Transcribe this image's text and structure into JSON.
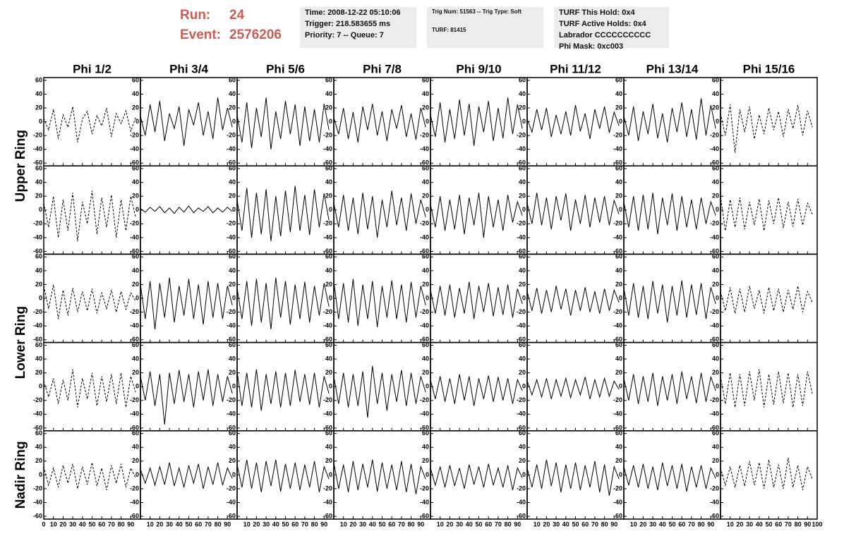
{
  "header": {
    "run_label": "Run:",
    "run": "24",
    "event_label": "Event:",
    "event": "2576206",
    "info_boxes": [
      [
        "Time: 2008-12-22 05:10:06",
        "Trigger: 218.583655 ms",
        "Priority: 7 -- Queue: 7"
      ],
      [
        "Trig Num: 51563 -- Trig Type: Soft",
        "TURF: 81415"
      ],
      [
        "TURF This Hold: 0x4",
        "TURF Active Holds: 0x4",
        "Labrador CCCCCCCCCC",
        "Phi Mask: 0xc003"
      ]
    ]
  },
  "columns": [
    "Phi 1/2",
    "Phi 3/4",
    "Phi 5/6",
    "Phi 7/8",
    "Phi 9/10",
    "Phi 11/12",
    "Phi 13/14",
    "Phi 15/16"
  ],
  "rings": [
    "Upper Ring",
    "Lower Ring",
    "Nadir Ring"
  ],
  "dashed": [
    true,
    false,
    false,
    false,
    false,
    false,
    false,
    true
  ],
  "xlim": [
    0,
    100
  ],
  "xticks": [
    0,
    10,
    20,
    30,
    40,
    50,
    60,
    70,
    80,
    90,
    100
  ],
  "ylim": [
    -64,
    64
  ],
  "yticks": [
    -60,
    -40,
    -20,
    0,
    20,
    40,
    60
  ],
  "x": [
    0,
    5,
    10,
    15,
    20,
    25,
    30,
    35,
    40,
    45,
    50,
    55,
    60,
    65,
    70,
    75,
    80,
    85,
    90,
    95
  ],
  "waves": [
    [
      [
        5,
        -12,
        18,
        -25,
        10,
        -8,
        22,
        -30,
        4,
        15,
        -18,
        9,
        -6,
        20,
        -22,
        12,
        -3,
        16,
        -14,
        6
      ],
      [
        8,
        -20,
        25,
        -15,
        30,
        -28,
        12,
        -10,
        22,
        -35,
        18,
        -5,
        28,
        -20,
        15,
        -25,
        35,
        -12,
        20,
        -8
      ],
      [
        10,
        -30,
        28,
        -38,
        20,
        -22,
        35,
        -40,
        15,
        -25,
        30,
        -18,
        25,
        -35,
        22,
        -28,
        18,
        -30,
        26,
        -12
      ],
      [
        6,
        -18,
        20,
        -25,
        14,
        -30,
        22,
        -12,
        26,
        -20,
        15,
        -28,
        18,
        -10,
        24,
        -22,
        12,
        -26,
        20,
        -8
      ],
      [
        10,
        -22,
        28,
        -30,
        18,
        -25,
        32,
        -20,
        26,
        -35,
        22,
        -15,
        30,
        -28,
        20,
        -24,
        35,
        -18,
        25,
        -10
      ],
      [
        4,
        -15,
        18,
        -12,
        20,
        -22,
        10,
        -18,
        15,
        -20,
        24,
        -14,
        12,
        -25,
        18,
        -10,
        22,
        -16,
        14,
        -6
      ],
      [
        8,
        -20,
        22,
        -28,
        15,
        -18,
        26,
        -24,
        12,
        -30,
        20,
        -15,
        28,
        -22,
        18,
        -26,
        34,
        -20,
        24,
        -10
      ],
      [
        12,
        -20,
        25,
        -45,
        18,
        -15,
        22,
        -25,
        10,
        -18,
        20,
        -12,
        15,
        -22,
        18,
        -10,
        24,
        -20,
        16,
        -8
      ]
    ],
    [
      [
        10,
        -25,
        20,
        -40,
        15,
        -30,
        25,
        -45,
        12,
        -20,
        28,
        -35,
        18,
        -25,
        22,
        -40,
        15,
        -30,
        20,
        -10
      ],
      [
        2,
        -3,
        4,
        -2,
        5,
        -4,
        3,
        -5,
        4,
        -3,
        6,
        -4,
        3,
        -2,
        5,
        -4,
        3,
        -3,
        4,
        -2
      ],
      [
        15,
        -30,
        32,
        -40,
        25,
        -35,
        30,
        -45,
        20,
        -38,
        28,
        -32,
        35,
        -30,
        22,
        -36,
        30,
        -25,
        24,
        -15
      ],
      [
        10,
        -25,
        22,
        -30,
        18,
        -35,
        25,
        -28,
        20,
        -40,
        15,
        -25,
        28,
        -22,
        18,
        -30,
        24,
        -20,
        15,
        -10
      ],
      [
        8,
        -25,
        20,
        -30,
        15,
        -28,
        22,
        -35,
        18,
        -22,
        25,
        -40,
        20,
        -25,
        15,
        -30,
        22,
        -18,
        12,
        -8
      ],
      [
        10,
        -20,
        25,
        -22,
        18,
        -28,
        20,
        -15,
        24,
        -30,
        15,
        -20,
        22,
        -25,
        18,
        -18,
        20,
        -22,
        14,
        -6
      ],
      [
        12,
        -25,
        20,
        -30,
        22,
        -28,
        25,
        -35,
        18,
        -22,
        24,
        -30,
        20,
        -25,
        15,
        -28,
        18,
        -20,
        12,
        -8
      ],
      [
        20,
        -30,
        15,
        -25,
        18,
        -28,
        12,
        -22,
        16,
        -30,
        14,
        -20,
        18,
        -26,
        12,
        -24,
        16,
        -22,
        10,
        -6
      ]
    ],
    [
      [
        18,
        -15,
        20,
        -30,
        12,
        -25,
        15,
        -20,
        10,
        -18,
        14,
        -22,
        8,
        -15,
        12,
        -20,
        10,
        -16,
        8,
        -4
      ],
      [
        20,
        -30,
        25,
        -45,
        22,
        -28,
        30,
        -35,
        18,
        -25,
        28,
        -30,
        20,
        -38,
        25,
        -28,
        22,
        -30,
        18,
        -10
      ],
      [
        15,
        -30,
        25,
        -40,
        28,
        -35,
        22,
        -45,
        30,
        -28,
        25,
        -38,
        20,
        -30,
        24,
        -35,
        18,
        -25,
        22,
        -12
      ],
      [
        25,
        -30,
        22,
        -35,
        28,
        -40,
        20,
        -30,
        25,
        -42,
        18,
        -28,
        26,
        -30,
        20,
        -35,
        24,
        -28,
        18,
        -10
      ],
      [
        12,
        -22,
        18,
        -25,
        20,
        -28,
        15,
        -22,
        24,
        -30,
        18,
        -20,
        22,
        -26,
        16,
        -24,
        20,
        -28,
        14,
        -8
      ],
      [
        10,
        -18,
        15,
        -22,
        12,
        -20,
        18,
        -16,
        14,
        -25,
        12,
        -18,
        16,
        -20,
        10,
        -22,
        14,
        -18,
        12,
        -6
      ],
      [
        15,
        -25,
        22,
        -28,
        18,
        -30,
        25,
        -22,
        20,
        -35,
        18,
        -25,
        26,
        -28,
        20,
        -24,
        22,
        -30,
        16,
        -8
      ],
      [
        10,
        -18,
        16,
        -22,
        14,
        -20,
        18,
        -15,
        12,
        -22,
        16,
        -18,
        14,
        -20,
        12,
        -16,
        18,
        -20,
        10,
        -6
      ]
    ],
    [
      [
        8,
        -15,
        12,
        -25,
        10,
        -20,
        25,
        -30,
        12,
        -18,
        20,
        -28,
        15,
        -22,
        18,
        -25,
        20,
        -30,
        15,
        -8
      ],
      [
        15,
        -20,
        22,
        -28,
        18,
        -55,
        20,
        -25,
        24,
        -22,
        18,
        -30,
        22,
        -20,
        25,
        -28,
        18,
        -22,
        15,
        -10
      ],
      [
        22,
        -28,
        20,
        -30,
        25,
        -35,
        18,
        -25,
        22,
        -30,
        20,
        -28,
        24,
        -22,
        18,
        -26,
        20,
        -30,
        15,
        -10
      ],
      [
        15,
        -25,
        20,
        -30,
        18,
        -28,
        22,
        -45,
        30,
        -25,
        20,
        -35,
        18,
        -22,
        24,
        -28,
        20,
        -25,
        15,
        -8
      ],
      [
        10,
        -18,
        15,
        -22,
        12,
        -25,
        18,
        -20,
        15,
        -28,
        12,
        -18,
        16,
        -22,
        14,
        -20,
        12,
        -25,
        10,
        -6
      ],
      [
        8,
        -12,
        10,
        -15,
        12,
        -18,
        10,
        -14,
        12,
        -16,
        10,
        -12,
        14,
        -18,
        10,
        -15,
        12,
        -14,
        8,
        -4
      ],
      [
        12,
        -20,
        18,
        -25,
        15,
        -22,
        20,
        -28,
        15,
        -20,
        18,
        -25,
        22,
        -18,
        15,
        -24,
        20,
        -22,
        14,
        -6
      ],
      [
        15,
        -25,
        20,
        -30,
        18,
        -28,
        22,
        -20,
        25,
        -30,
        18,
        -26,
        22,
        -24,
        20,
        -30,
        18,
        -28,
        22,
        -10
      ]
    ],
    [
      [
        12,
        -15,
        10,
        -18,
        14,
        -12,
        16,
        -20,
        12,
        -14,
        18,
        -16,
        10,
        -22,
        14,
        -12,
        16,
        -18,
        10,
        -4
      ],
      [
        8,
        -12,
        10,
        -15,
        12,
        -14,
        18,
        -16,
        10,
        -18,
        14,
        -12,
        16,
        -20,
        12,
        -14,
        18,
        -15,
        10,
        -5
      ],
      [
        15,
        -18,
        22,
        -20,
        18,
        -25,
        20,
        -16,
        22,
        -24,
        16,
        -20,
        18,
        -22,
        15,
        -18,
        20,
        -25,
        12,
        -6
      ],
      [
        18,
        -20,
        15,
        -25,
        20,
        -22,
        16,
        -18,
        22,
        -24,
        18,
        -20,
        15,
        -22,
        20,
        -25,
        16,
        -28,
        12,
        -6
      ],
      [
        10,
        -15,
        12,
        -18,
        14,
        -16,
        10,
        -20,
        15,
        -14,
        12,
        -18,
        16,
        -15,
        10,
        -18,
        14,
        -22,
        10,
        -4
      ],
      [
        10,
        -18,
        15,
        -20,
        22,
        -16,
        18,
        -25,
        15,
        -20,
        18,
        -22,
        14,
        -18,
        20,
        -25,
        15,
        -30,
        12,
        -6
      ],
      [
        12,
        -15,
        14,
        -18,
        16,
        -20,
        12,
        -22,
        18,
        -16,
        14,
        -20,
        16,
        -24,
        12,
        -18,
        14,
        -20,
        10,
        -5
      ],
      [
        10,
        -15,
        12,
        -18,
        14,
        -16,
        20,
        -15,
        18,
        -20,
        22,
        -18,
        15,
        -20,
        25,
        -18,
        14,
        -22,
        12,
        -6
      ]
    ]
  ]
}
